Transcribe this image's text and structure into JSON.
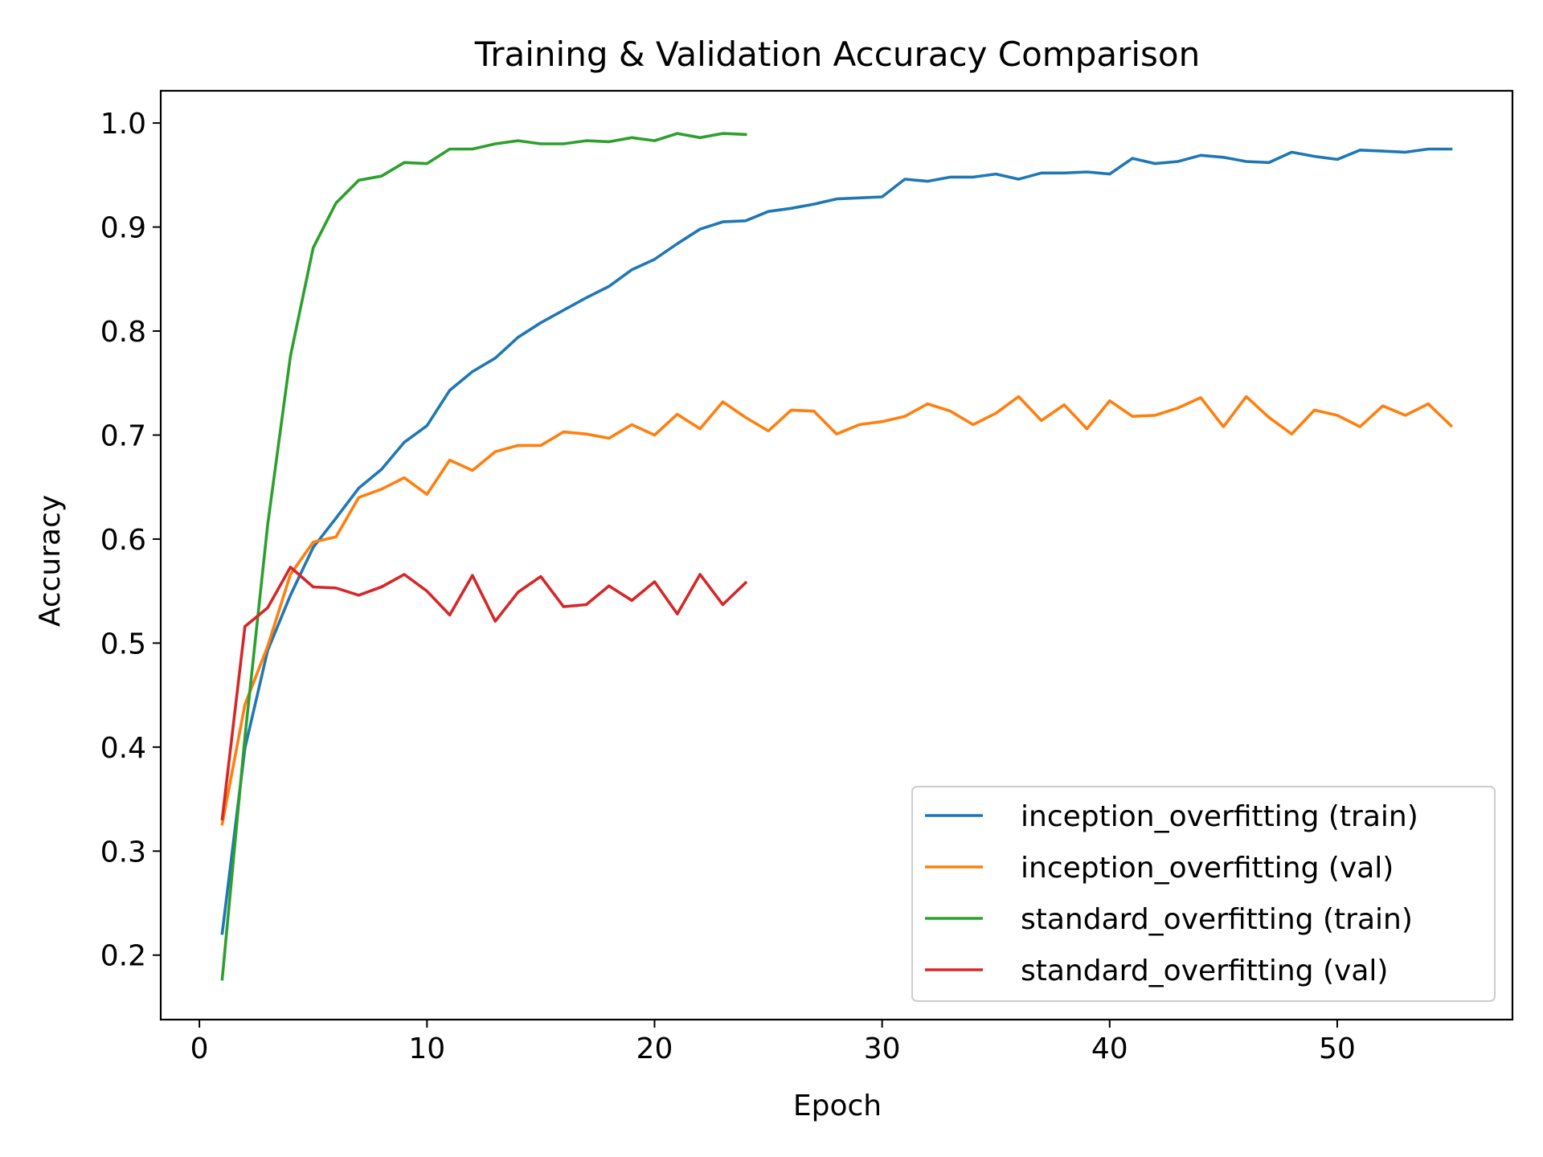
{
  "chart_data": {
    "type": "line",
    "title": "Training & Validation Accuracy Comparison",
    "xlabel": "Epoch",
    "ylabel": "Accuracy",
    "xlim": [
      -1.7,
      57.7
    ],
    "ylim": [
      0.138,
      1.031
    ],
    "xticks": [
      0,
      10,
      20,
      30,
      40,
      50
    ],
    "yticks": [
      0.2,
      0.3,
      0.4,
      0.5,
      0.6,
      0.7,
      0.8,
      0.9,
      1.0
    ],
    "xtick_labels": [
      "0",
      "10",
      "20",
      "30",
      "40",
      "50"
    ],
    "ytick_labels": [
      "0.2",
      "0.3",
      "0.4",
      "0.5",
      "0.6",
      "0.7",
      "0.8",
      "0.9",
      "1.0"
    ],
    "grid": false,
    "legend_position": "lower-right",
    "series": [
      {
        "name": "inception_overfitting (train)",
        "color": "#1f77b4",
        "x": [
          1,
          2,
          3,
          4,
          5,
          6,
          7,
          8,
          9,
          10,
          11,
          12,
          13,
          14,
          15,
          16,
          17,
          18,
          19,
          20,
          21,
          22,
          23,
          24,
          25,
          26,
          27,
          28,
          29,
          30,
          31,
          32,
          33,
          34,
          35,
          36,
          37,
          38,
          39,
          40,
          41,
          42,
          43,
          44,
          45,
          46,
          47,
          48,
          49,
          50,
          51,
          52,
          53,
          54,
          55
        ],
        "values": [
          0.221,
          0.399,
          0.493,
          0.546,
          0.592,
          0.62,
          0.649,
          0.667,
          0.693,
          0.709,
          0.743,
          0.761,
          0.774,
          0.794,
          0.808,
          0.82,
          0.832,
          0.843,
          0.859,
          0.869,
          0.884,
          0.898,
          0.905,
          0.906,
          0.915,
          0.918,
          0.922,
          0.927,
          0.928,
          0.929,
          0.946,
          0.944,
          0.948,
          0.948,
          0.951,
          0.946,
          0.952,
          0.952,
          0.953,
          0.951,
          0.966,
          0.961,
          0.963,
          0.969,
          0.967,
          0.963,
          0.962,
          0.972,
          0.968,
          0.965,
          0.974,
          0.973,
          0.972,
          0.975,
          0.975
        ]
      },
      {
        "name": "inception_overfitting (val)",
        "color": "#ff7f0e",
        "x": [
          1,
          2,
          3,
          4,
          5,
          6,
          7,
          8,
          9,
          10,
          11,
          12,
          13,
          14,
          15,
          16,
          17,
          18,
          19,
          20,
          21,
          22,
          23,
          24,
          25,
          26,
          27,
          28,
          29,
          30,
          31,
          32,
          33,
          34,
          35,
          36,
          37,
          38,
          39,
          40,
          41,
          42,
          43,
          44,
          45,
          46,
          47,
          48,
          49,
          50,
          51,
          52,
          53,
          54,
          55
        ],
        "values": [
          0.326,
          0.441,
          0.497,
          0.566,
          0.597,
          0.602,
          0.64,
          0.648,
          0.659,
          0.643,
          0.676,
          0.666,
          0.684,
          0.69,
          0.69,
          0.703,
          0.701,
          0.697,
          0.71,
          0.7,
          0.72,
          0.706,
          0.732,
          0.717,
          0.704,
          0.724,
          0.723,
          0.701,
          0.71,
          0.713,
          0.718,
          0.73,
          0.723,
          0.71,
          0.721,
          0.737,
          0.714,
          0.729,
          0.706,
          0.733,
          0.718,
          0.719,
          0.726,
          0.736,
          0.708,
          0.737,
          0.717,
          0.701,
          0.724,
          0.719,
          0.708,
          0.728,
          0.719,
          0.73,
          0.709
        ]
      },
      {
        "name": "standard_overfitting (train)",
        "color": "#2ca02c",
        "x": [
          1,
          2,
          3,
          4,
          5,
          6,
          7,
          8,
          9,
          10,
          11,
          12,
          13,
          14,
          15,
          16,
          17,
          18,
          19,
          20,
          21,
          22,
          23,
          24
        ],
        "values": [
          0.177,
          0.41,
          0.614,
          0.776,
          0.88,
          0.923,
          0.945,
          0.949,
          0.962,
          0.961,
          0.975,
          0.975,
          0.98,
          0.983,
          0.98,
          0.98,
          0.983,
          0.982,
          0.986,
          0.983,
          0.99,
          0.986,
          0.99,
          0.989
        ]
      },
      {
        "name": "standard_overfitting (val)",
        "color": "#d62728",
        "x": [
          1,
          2,
          3,
          4,
          5,
          6,
          7,
          8,
          9,
          10,
          11,
          12,
          13,
          14,
          15,
          16,
          17,
          18,
          19,
          20,
          21,
          22,
          23,
          24
        ],
        "values": [
          0.331,
          0.516,
          0.534,
          0.573,
          0.554,
          0.553,
          0.546,
          0.554,
          0.566,
          0.55,
          0.527,
          0.565,
          0.521,
          0.549,
          0.564,
          0.535,
          0.537,
          0.555,
          0.541,
          0.559,
          0.528,
          0.566,
          0.537,
          0.558
        ]
      }
    ]
  }
}
